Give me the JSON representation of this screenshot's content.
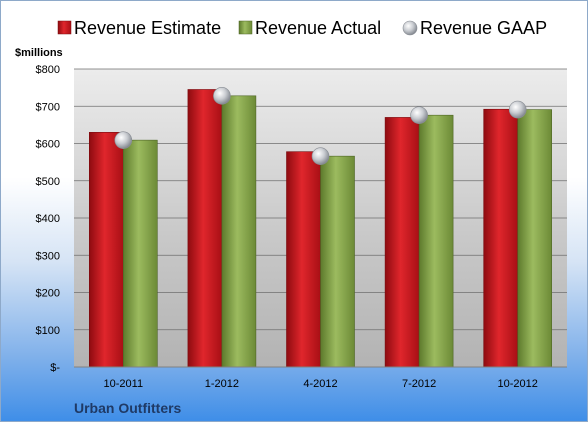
{
  "chart_data": {
    "type": "bar",
    "categories": [
      "10-2011",
      "1-2012",
      "4-2012",
      "7-2012",
      "10-2012"
    ],
    "series": [
      {
        "name": "Revenue Estimate",
        "type": "bar",
        "values": [
          630,
          745,
          578,
          670,
          692
        ]
      },
      {
        "name": "Revenue Actual",
        "type": "bar",
        "values": [
          609,
          728,
          566,
          676,
          691
        ]
      },
      {
        "name": "Revenue GAAP",
        "type": "scatter",
        "values": [
          609,
          728,
          566,
          676,
          691
        ]
      }
    ],
    "y_unit_label": "$millions",
    "ylim": [
      0,
      800
    ],
    "y_ticks": [
      0,
      100,
      200,
      300,
      400,
      500,
      600,
      700,
      800
    ],
    "y_tick_labels": [
      "$-",
      "$100",
      "$200",
      "$300",
      "$400",
      "$500",
      "$600",
      "$700",
      "$800"
    ],
    "company": "Urban Outfitters",
    "legend_position": "top",
    "grid": true,
    "colors": {
      "estimate": "#c8151c",
      "actual": "#7f9d42",
      "gaap": "#b8bcc2"
    }
  }
}
